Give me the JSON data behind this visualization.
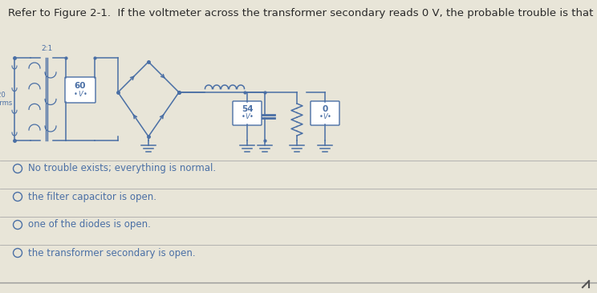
{
  "title": "Refer to Figure 2-1.  If the voltmeter across the transformer secondary reads 0 V, the probable trouble is that",
  "title_fontsize": 9.5,
  "bg_color": "#cfd0d1",
  "panel_color": "#e8e5d8",
  "text_color": "#3a5a8a",
  "dark_text": "#2a2a2a",
  "blue_color": "#4a6fa5",
  "options": [
    "No trouble exists; everything is normal.",
    "the filter capacitor is open.",
    "one of the diodes is open.",
    "the transformer secondary is open."
  ],
  "option_fontsize": 8.5,
  "voltmeter1_val": "60",
  "voltmeter2_val": "54",
  "voltmeter3_val": "0",
  "fig_width": 7.44,
  "fig_height": 3.65
}
